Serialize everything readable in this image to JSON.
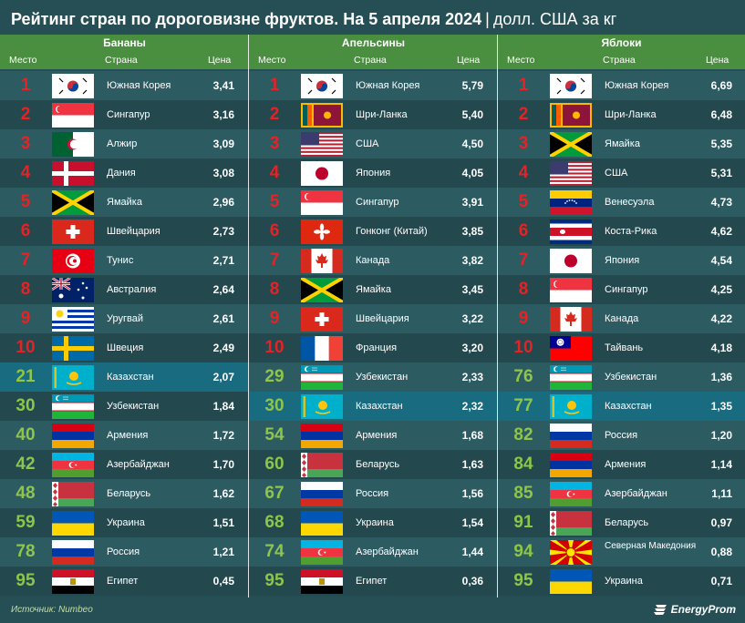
{
  "header": {
    "title": "Рейтинг стран по дороговизне фруктов. На 5 апреля 2024",
    "separator": "|",
    "unit": "долл. США за кг"
  },
  "columns": {
    "place": "Место",
    "country": "Страна",
    "price": "Цена"
  },
  "footer": {
    "source": "Источник: Numbeo",
    "brand": "EnergyProm"
  },
  "colors": {
    "top10": "#e62225",
    "other": "#8ec54a",
    "highlight": "#196b80",
    "band": "#4a8e3f"
  },
  "chart_data": {
    "type": "table",
    "groups": [
      {
        "name": "Бананы",
        "rows": [
          {
            "place": "1",
            "country": "Южная Корея",
            "price": "3,41",
            "flag": "KR"
          },
          {
            "place": "2",
            "country": "Сингапур",
            "price": "3,16",
            "flag": "SG"
          },
          {
            "place": "3",
            "country": "Алжир",
            "price": "3,09",
            "flag": "DZ"
          },
          {
            "place": "4",
            "country": "Дания",
            "price": "3,08",
            "flag": "DK"
          },
          {
            "place": "5",
            "country": "Ямайка",
            "price": "2,96",
            "flag": "JM"
          },
          {
            "place": "6",
            "country": "Швейцария",
            "price": "2,73",
            "flag": "CH"
          },
          {
            "place": "7",
            "country": "Тунис",
            "price": "2,71",
            "flag": "TN"
          },
          {
            "place": "8",
            "country": "Австралия",
            "price": "2,64",
            "flag": "AU"
          },
          {
            "place": "9",
            "country": "Уругвай",
            "price": "2,61",
            "flag": "UY"
          },
          {
            "place": "10",
            "country": "Швеция",
            "price": "2,49",
            "flag": "SE"
          },
          {
            "place": "21",
            "country": "Казахстан",
            "price": "2,07",
            "flag": "KZ"
          },
          {
            "place": "30",
            "country": "Узбекистан",
            "price": "1,84",
            "flag": "UZ"
          },
          {
            "place": "40",
            "country": "Армения",
            "price": "1,72",
            "flag": "AM"
          },
          {
            "place": "42",
            "country": "Азербайджан",
            "price": "1,70",
            "flag": "AZ"
          },
          {
            "place": "48",
            "country": "Беларусь",
            "price": "1,62",
            "flag": "BY"
          },
          {
            "place": "59",
            "country": "Украина",
            "price": "1,51",
            "flag": "UA"
          },
          {
            "place": "78",
            "country": "Россия",
            "price": "1,21",
            "flag": "RU"
          },
          {
            "place": "95",
            "country": "Египет",
            "price": "0,45",
            "flag": "EG"
          }
        ]
      },
      {
        "name": "Апельсины",
        "rows": [
          {
            "place": "1",
            "country": "Южная Корея",
            "price": "5,79",
            "flag": "KR"
          },
          {
            "place": "2",
            "country": "Шри-Ланка",
            "price": "5,40",
            "flag": "LK"
          },
          {
            "place": "3",
            "country": "США",
            "price": "4,50",
            "flag": "US"
          },
          {
            "place": "4",
            "country": "Япония",
            "price": "4,05",
            "flag": "JP"
          },
          {
            "place": "5",
            "country": "Сингапур",
            "price": "3,91",
            "flag": "SG"
          },
          {
            "place": "6",
            "country": "Гонконг (Китай)",
            "price": "3,85",
            "flag": "HK"
          },
          {
            "place": "7",
            "country": "Канада",
            "price": "3,82",
            "flag": "CA"
          },
          {
            "place": "8",
            "country": "Ямайка",
            "price": "3,45",
            "flag": "JM"
          },
          {
            "place": "9",
            "country": "Швейцария",
            "price": "3,22",
            "flag": "CH"
          },
          {
            "place": "10",
            "country": "Франция",
            "price": "3,20",
            "flag": "FR"
          },
          {
            "place": "29",
            "country": "Узбекистан",
            "price": "2,33",
            "flag": "UZ"
          },
          {
            "place": "30",
            "country": "Казахстан",
            "price": "2,32",
            "flag": "KZ"
          },
          {
            "place": "54",
            "country": "Армения",
            "price": "1,68",
            "flag": "AM"
          },
          {
            "place": "60",
            "country": "Беларусь",
            "price": "1,63",
            "flag": "BY"
          },
          {
            "place": "67",
            "country": "Россия",
            "price": "1,56",
            "flag": "RU"
          },
          {
            "place": "68",
            "country": "Украина",
            "price": "1,54",
            "flag": "UA"
          },
          {
            "place": "74",
            "country": "Азербайджан",
            "price": "1,44",
            "flag": "AZ"
          },
          {
            "place": "95",
            "country": "Египет",
            "price": "0,36",
            "flag": "EG"
          }
        ]
      },
      {
        "name": "Яблоки",
        "rows": [
          {
            "place": "1",
            "country": "Южная Корея",
            "price": "6,69",
            "flag": "KR"
          },
          {
            "place": "2",
            "country": "Шри-Ланка",
            "price": "6,48",
            "flag": "LK"
          },
          {
            "place": "3",
            "country": "Ямайка",
            "price": "5,35",
            "flag": "JM"
          },
          {
            "place": "4",
            "country": "США",
            "price": "5,31",
            "flag": "US"
          },
          {
            "place": "5",
            "country": "Венесуэла",
            "price": "4,73",
            "flag": "VE"
          },
          {
            "place": "6",
            "country": "Коста-Рика",
            "price": "4,62",
            "flag": "CR"
          },
          {
            "place": "7",
            "country": "Япония",
            "price": "4,54",
            "flag": "JP"
          },
          {
            "place": "8",
            "country": "Сингапур",
            "price": "4,25",
            "flag": "SG"
          },
          {
            "place": "9",
            "country": "Канада",
            "price": "4,22",
            "flag": "CA"
          },
          {
            "place": "10",
            "country": "Тайвань",
            "price": "4,18",
            "flag": "TW"
          },
          {
            "place": "76",
            "country": "Узбекистан",
            "price": "1,36",
            "flag": "UZ"
          },
          {
            "place": "77",
            "country": "Казахстан",
            "price": "1,35",
            "flag": "KZ"
          },
          {
            "place": "82",
            "country": "Россия",
            "price": "1,20",
            "flag": "RU"
          },
          {
            "place": "84",
            "country": "Армения",
            "price": "1,14",
            "flag": "AM"
          },
          {
            "place": "85",
            "country": "Азербайджан",
            "price": "1,11",
            "flag": "AZ"
          },
          {
            "place": "91",
            "country": "Беларусь",
            "price": "0,97",
            "flag": "BY"
          },
          {
            "place": "94",
            "country": "Северная Македония",
            "price": "0,88",
            "flag": "MK"
          },
          {
            "place": "95",
            "country": "Украина",
            "price": "0,71",
            "flag": "UA"
          }
        ]
      }
    ]
  }
}
